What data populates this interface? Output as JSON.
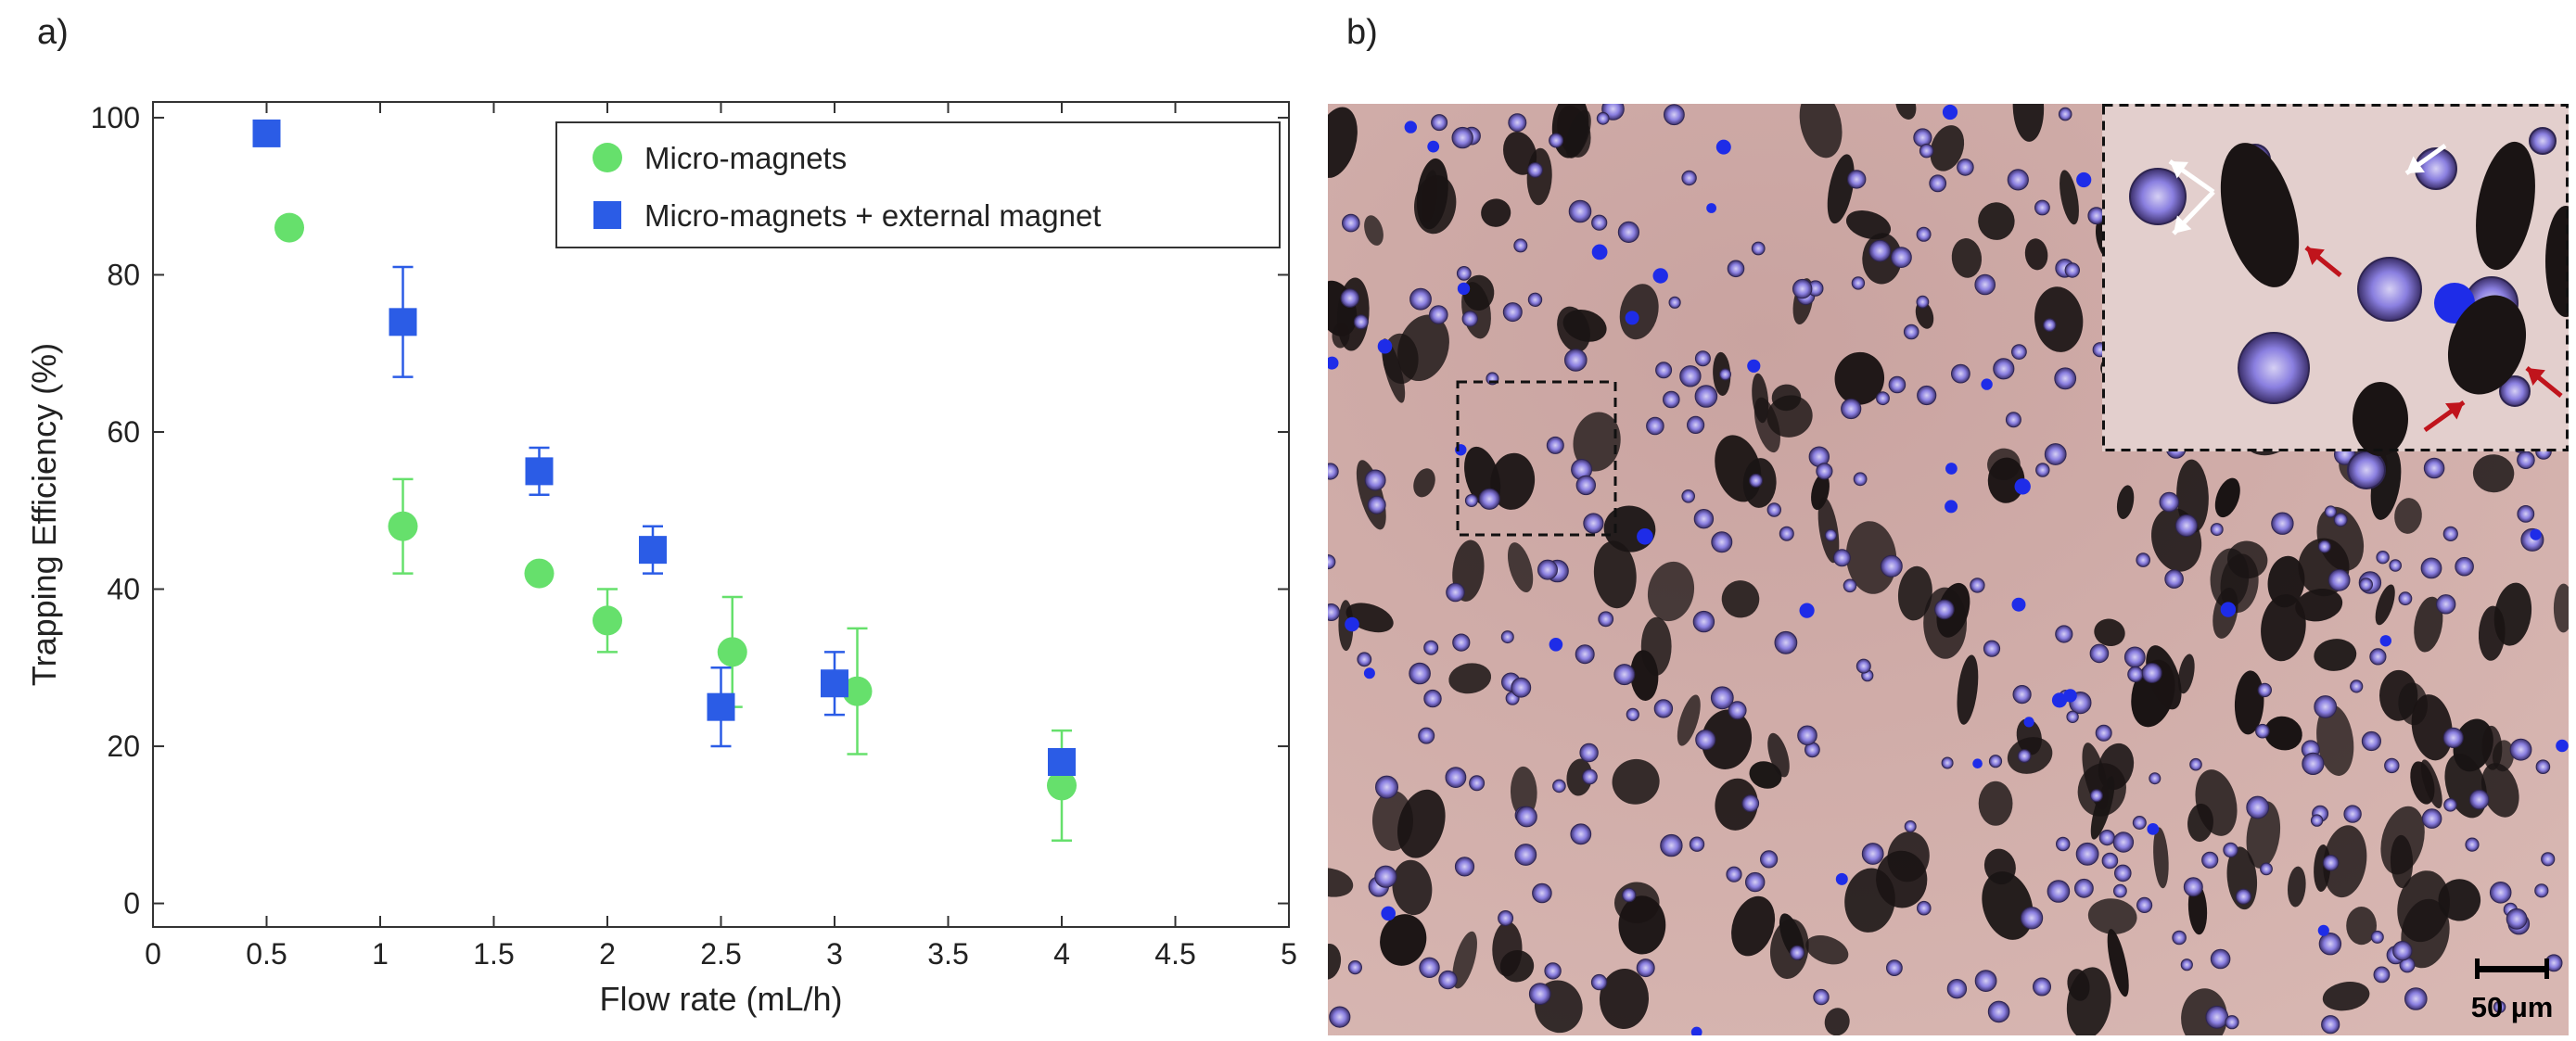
{
  "panel_a_label": "a)",
  "panel_b_label": "b)",
  "chart_data": {
    "type": "scatter",
    "xlabel": "Flow rate (mL/h)",
    "ylabel": "Trapping Efficiency (%)",
    "xlim": [
      0,
      5
    ],
    "ylim": [
      0,
      100
    ],
    "x_ticks": [
      "0",
      "0.5",
      "1",
      "1.5",
      "2",
      "2.5",
      "3",
      "3.5",
      "4",
      "4.5",
      "5"
    ],
    "y_ticks": [
      "0",
      "20",
      "40",
      "60",
      "80",
      "100"
    ],
    "legend_position": "top-right",
    "series": [
      {
        "name": "Micro-magnets",
        "marker": "circle",
        "color": "#66e06c",
        "points": [
          {
            "x": 0.6,
            "y": 86,
            "err": 0
          },
          {
            "x": 1.1,
            "y": 48,
            "err": 6
          },
          {
            "x": 1.7,
            "y": 42,
            "err": 1
          },
          {
            "x": 2.0,
            "y": 36,
            "err": 4
          },
          {
            "x": 2.55,
            "y": 32,
            "err": 7
          },
          {
            "x": 3.1,
            "y": 27,
            "err": 8
          },
          {
            "x": 4.0,
            "y": 15,
            "err": 7
          }
        ]
      },
      {
        "name": "Micro-magnets + external magnet",
        "marker": "square",
        "color": "#2b5ce6",
        "points": [
          {
            "x": 0.5,
            "y": 98,
            "err": 0
          },
          {
            "x": 1.1,
            "y": 74,
            "err": 7
          },
          {
            "x": 1.7,
            "y": 55,
            "err": 3
          },
          {
            "x": 2.2,
            "y": 45,
            "err": 3
          },
          {
            "x": 2.5,
            "y": 25,
            "err": 5
          },
          {
            "x": 3.0,
            "y": 28,
            "err": 4
          },
          {
            "x": 4.0,
            "y": 18,
            "err": 0
          }
        ]
      }
    ]
  },
  "micrograph": {
    "scale_bar_label": "50 µm",
    "background_color": "#d8b7b2",
    "cell_color": "#8a7fe0",
    "particle_color": "#1a1414",
    "white_arrow_color": "#ffffff",
    "red_arrow_color": "#c0141c"
  }
}
